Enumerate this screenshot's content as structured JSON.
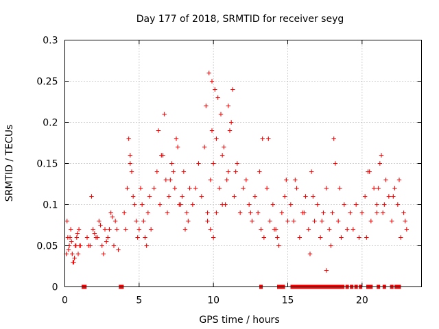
{
  "chart_data": {
    "type": "scatter",
    "title": "Day 177 of 2018, SRMTID for receiver seyg",
    "xlabel": "GPS time / hours",
    "ylabel": "SRMTID / TECUs",
    "xlim": [
      0,
      24
    ],
    "ylim": [
      0,
      0.3
    ],
    "x_ticks": [
      0,
      5,
      10,
      15,
      20
    ],
    "x_tick_labels": [
      "0",
      "5",
      "10",
      "15",
      "20"
    ],
    "y_ticks": [
      0,
      0.05,
      0.1,
      0.15,
      0.2,
      0.25,
      0.3
    ],
    "y_tick_labels": [
      "0",
      "0.05",
      "0.1",
      "0.15",
      "0.2",
      "0.25",
      "0.3"
    ],
    "grid": true,
    "marker": "plus",
    "color": "#ff0000",
    "series": [
      {
        "name": "SRMTID",
        "x": [
          0.1,
          0.2,
          0.3,
          0.4,
          0.5,
          0.6,
          0.7,
          0.8,
          0.9,
          1.0,
          0.15,
          0.35,
          0.55,
          0.75,
          0.95,
          0.25,
          0.45,
          0.65,
          0.85,
          1.05,
          1.5,
          1.7,
          1.9,
          2.1,
          2.3,
          2.5,
          2.7,
          2.9,
          3.1,
          3.3,
          3.5,
          1.8,
          2.2,
          2.6,
          3.0,
          3.4,
          1.6,
          2.0,
          2.4,
          2.8,
          3.2,
          3.6,
          4.0,
          4.2,
          4.4,
          4.6,
          4.8,
          5.0,
          5.2,
          5.4,
          5.6,
          5.8,
          4.3,
          4.5,
          4.7,
          4.9,
          5.1,
          5.3,
          5.5,
          5.7,
          4.1,
          4.4,
          6.0,
          6.2,
          6.4,
          6.6,
          6.8,
          7.0,
          7.2,
          7.4,
          7.6,
          7.8,
          8.0,
          8.2,
          8.4,
          6.3,
          6.7,
          7.1,
          7.5,
          7.9,
          8.3,
          6.5,
          6.9,
          7.3,
          7.7,
          8.1,
          8.6,
          8.8,
          9.0,
          9.2,
          9.4,
          9.6,
          9.8,
          10.0,
          10.2,
          10.4,
          10.6,
          10.8,
          11.0,
          11.2,
          11.4,
          11.6,
          11.8,
          12.0,
          9.5,
          9.7,
          9.9,
          10.1,
          10.3,
          10.5,
          10.7,
          10.9,
          11.1,
          11.3,
          9.6,
          9.8,
          10.0,
          10.2,
          9.9,
          10.6,
          11.0,
          11.5,
          12.2,
          12.4,
          12.6,
          12.8,
          13.0,
          13.2,
          13.4,
          13.6,
          13.8,
          14.0,
          14.2,
          14.4,
          14.6,
          14.8,
          15.0,
          12.5,
          13.1,
          13.7,
          14.3,
          14.9,
          15.2,
          15.4,
          15.6,
          15.8,
          16.0,
          16.2,
          16.4,
          16.6,
          16.8,
          17.0,
          17.2,
          17.4,
          17.6,
          17.8,
          18.0,
          18.2,
          18.4,
          18.6,
          18.8,
          19.0,
          15.5,
          16.1,
          16.7,
          17.3,
          17.9,
          18.5,
          19.2,
          19.4,
          19.6,
          19.8,
          20.0,
          20.2,
          20.4,
          20.6,
          20.8,
          21.0,
          21.2,
          21.4,
          21.6,
          21.8,
          22.0,
          22.2,
          22.4,
          22.6,
          22.8,
          23.0,
          20.5,
          21.1,
          21.3,
          22.1,
          22.5,
          22.9,
          18.1,
          13.3,
          14.1,
          16.5,
          17.6,
          20.3,
          21.0,
          21.5
        ],
        "y": [
          0.04,
          0.06,
          0.05,
          0.07,
          0.04,
          0.03,
          0.05,
          0.06,
          0.04,
          0.05,
          0.08,
          0.06,
          0.03,
          0.05,
          0.07,
          0.045,
          0.055,
          0.035,
          0.065,
          0.05,
          0.06,
          0.05,
          0.07,
          0.06,
          0.08,
          0.05,
          0.07,
          0.06,
          0.09,
          0.05,
          0.07,
          0.11,
          0.06,
          0.04,
          0.07,
          0.08,
          0.05,
          0.065,
          0.075,
          0.055,
          0.085,
          0.045,
          0.09,
          0.12,
          0.16,
          0.11,
          0.08,
          0.07,
          0.1,
          0.06,
          0.09,
          0.07,
          0.18,
          0.14,
          0.1,
          0.06,
          0.12,
          0.08,
          0.05,
          0.11,
          0.07,
          0.15,
          0.12,
          0.14,
          0.1,
          0.16,
          0.13,
          0.11,
          0.15,
          0.12,
          0.17,
          0.1,
          0.14,
          0.09,
          0.12,
          0.19,
          0.21,
          0.13,
          0.18,
          0.11,
          0.08,
          0.16,
          0.09,
          0.14,
          0.1,
          0.07,
          0.1,
          0.12,
          0.15,
          0.11,
          0.17,
          0.09,
          0.13,
          0.15,
          0.18,
          0.12,
          0.16,
          0.1,
          0.14,
          0.2,
          0.11,
          0.15,
          0.09,
          0.12,
          0.22,
          0.26,
          0.19,
          0.24,
          0.23,
          0.21,
          0.17,
          0.13,
          0.19,
          0.24,
          0.08,
          0.07,
          0.06,
          0.09,
          0.25,
          0.1,
          0.22,
          0.14,
          0.13,
          0.1,
          0.08,
          0.11,
          0.09,
          0.07,
          0.06,
          0.12,
          0.08,
          0.1,
          0.07,
          0.05,
          0.09,
          0.11,
          0.08,
          0.09,
          0.14,
          0.18,
          0.06,
          0.13,
          0.1,
          0.08,
          0.12,
          0.06,
          0.09,
          0.11,
          0.07,
          0.14,
          0.08,
          0.1,
          0.06,
          0.09,
          0.12,
          0.07,
          0.09,
          0.15,
          0.08,
          0.06,
          0.1,
          0.07,
          0.13,
          0.09,
          0.11,
          0.08,
          0.05,
          0.12,
          0.09,
          0.07,
          0.1,
          0.06,
          0.09,
          0.11,
          0.14,
          0.08,
          0.12,
          0.1,
          0.15,
          0.09,
          0.13,
          0.11,
          0.08,
          0.12,
          0.1,
          0.06,
          0.09,
          0.07,
          0.14,
          0.12,
          0.16,
          0.11,
          0.13,
          0.08,
          0.18,
          0.18,
          0.07,
          0.04,
          0.02,
          0.06,
          0.09,
          0.1
        ]
      }
    ],
    "zero_values": {
      "x": [
        1.25,
        1.35,
        3.75,
        3.85,
        13.2,
        14.4,
        14.6,
        14.7,
        15.3,
        15.5,
        15.7,
        15.9,
        16.1,
        16.3,
        16.5,
        16.7,
        16.9,
        17.1,
        17.3,
        17.5,
        17.7,
        17.9,
        18.1,
        18.3,
        18.5,
        18.7,
        19.0,
        19.3,
        19.6,
        19.9,
        20.4,
        20.6,
        21.1,
        21.5,
        22.0,
        22.3,
        22.5
      ],
      "y": 0
    }
  }
}
